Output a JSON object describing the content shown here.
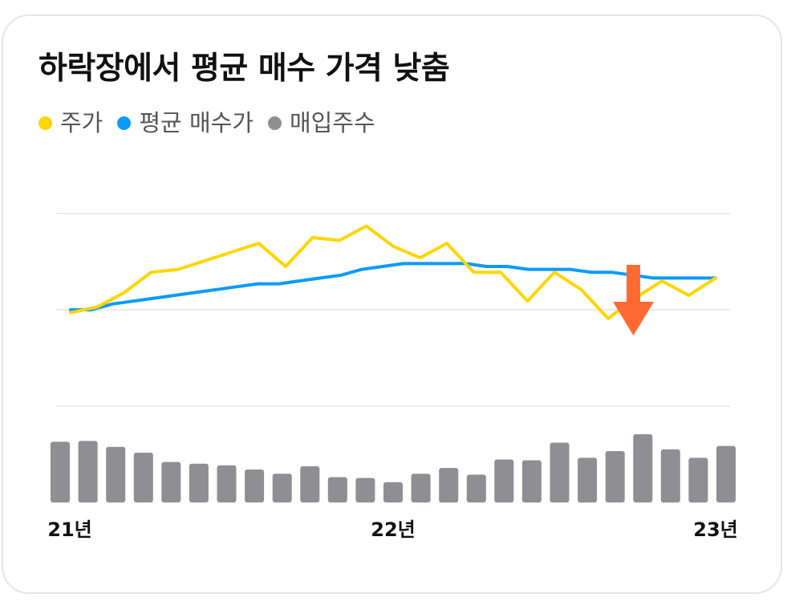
{
  "title": "하락장에서 평균 매수 가격 낮춤",
  "legend": [
    {
      "label": "주가",
      "color": "#FFD600"
    },
    {
      "label": "평균 매수가",
      "color": "#0A9BFA"
    },
    {
      "label": "매입주수",
      "color": "#8E8E93"
    }
  ],
  "annotation": {
    "icon": "arrow-down-icon",
    "color": "#FF6A33"
  },
  "chart_data": {
    "type": "line",
    "title": "하락장에서 평균 매수 가격 낮춤",
    "xlabel": "",
    "ylabel": "",
    "x_ticks": [
      "21년",
      "22년",
      "23년"
    ],
    "grid": true,
    "legend_position": "top-left",
    "ylim": [
      0,
      100
    ],
    "series": [
      {
        "name": "주가",
        "type": "line",
        "color": "#FFD600",
        "values": [
          64,
          66,
          71,
          78,
          79,
          82,
          85,
          88,
          80,
          90,
          89,
          94,
          87,
          83,
          88,
          78,
          78,
          68,
          78,
          72,
          62,
          69,
          75,
          70,
          76
        ]
      },
      {
        "name": "평균 매수가",
        "type": "line",
        "color": "#0A9BFA",
        "values": [
          65,
          65,
          67,
          68,
          69,
          70,
          71,
          72,
          73,
          74,
          74,
          75,
          76,
          77,
          79,
          80,
          81,
          81,
          81,
          81,
          80,
          80,
          79,
          79,
          79,
          78,
          78,
          77,
          76,
          76,
          76,
          76
        ]
      },
      {
        "name": "매입주수",
        "type": "bar",
        "color": "#8E8E93",
        "values": [
          72,
          73,
          66,
          59,
          48,
          46,
          44,
          39,
          34,
          43,
          30,
          29,
          24,
          34,
          41,
          33,
          51,
          50,
          71,
          53,
          61,
          81,
          63,
          53,
          67
        ]
      }
    ]
  }
}
